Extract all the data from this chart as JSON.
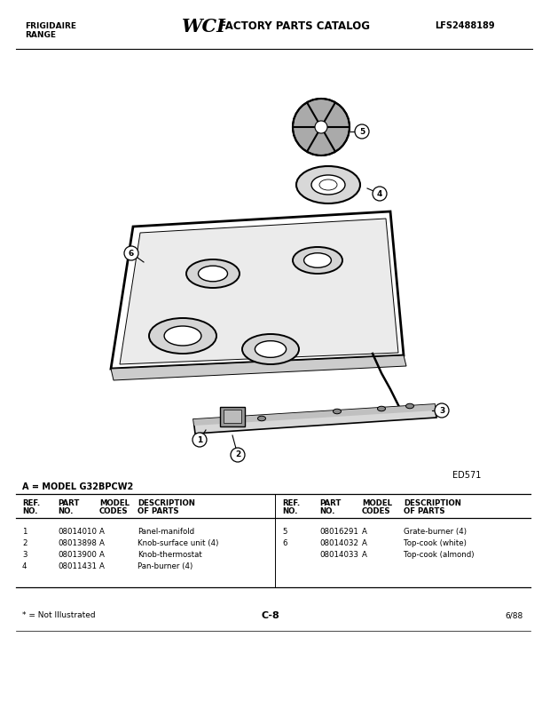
{
  "title_left1": "FRIGIDAIRE",
  "title_left2": "RANGE",
  "title_right": "LFS2488189",
  "model_label": "A = MODEL G32BPCW2",
  "diagram_label": "ED571",
  "page_label": "C-8",
  "date_label": "6/88",
  "footnote": "* = Not Illustrated",
  "parts_left": [
    [
      "1",
      "08014010",
      "A",
      "Panel-manifold"
    ],
    [
      "2",
      "08013898",
      "A",
      "Knob-surface unit (4)"
    ],
    [
      "3",
      "08013900",
      "A",
      "Knob-thermostat"
    ],
    [
      "4",
      "08011431",
      "A",
      "Pan-burner (4)"
    ]
  ],
  "parts_right": [
    [
      "5",
      "08016291",
      "A",
      "Grate-burner (4)"
    ],
    [
      "6",
      "08014032",
      "A",
      "Top-cook (white)"
    ],
    [
      "",
      "08014033",
      "A",
      "Top-cook (almond)"
    ]
  ],
  "header_hdrs1": [
    "REF.",
    "PART",
    "MODEL",
    "DESCRIPTION"
  ],
  "header_hdrs2": [
    "NO.",
    "NO.",
    "CODES",
    "OF PARTS"
  ]
}
